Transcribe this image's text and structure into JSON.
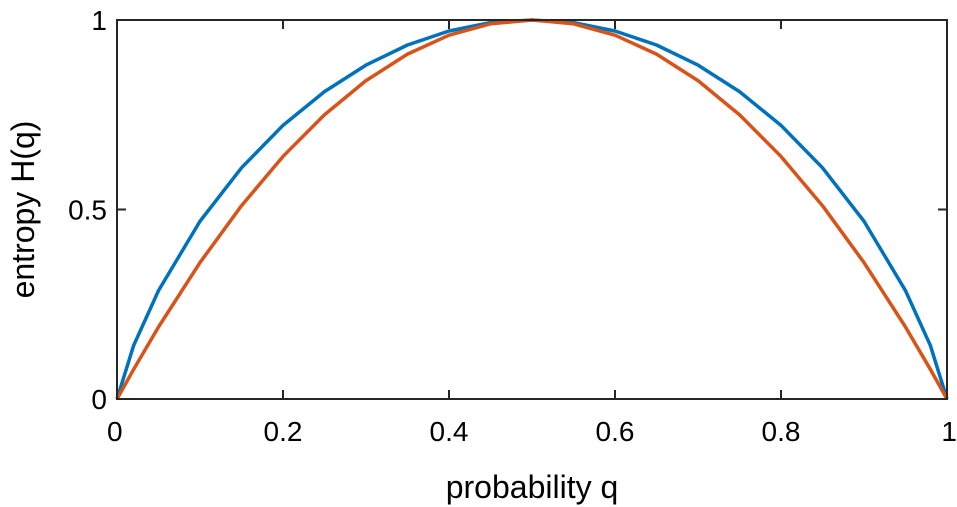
{
  "chart_data": {
    "type": "line",
    "xlabel": "probability q",
    "ylabel": "entropy H(q)",
    "xlim": [
      0,
      1
    ],
    "ylim": [
      0,
      1
    ],
    "x_ticks": [
      0,
      0.2,
      0.4,
      0.6,
      0.8,
      1
    ],
    "x_tick_labels": [
      "0",
      "0.2",
      "0.4",
      "0.6",
      "0.8",
      "1"
    ],
    "y_ticks": [
      0,
      0.5,
      1
    ],
    "y_tick_labels": [
      "0",
      "0.5",
      "1"
    ],
    "grid": false,
    "legend": false,
    "series": [
      {
        "color": "#0072BD",
        "x": [
          0,
          0.02,
          0.05,
          0.1,
          0.15,
          0.2,
          0.25,
          0.3,
          0.35,
          0.4,
          0.45,
          0.5,
          0.55,
          0.6,
          0.65,
          0.7,
          0.75,
          0.8,
          0.85,
          0.9,
          0.95,
          0.98,
          1
        ],
        "y": [
          0,
          0.141,
          0.286,
          0.469,
          0.61,
          0.722,
          0.811,
          0.881,
          0.934,
          0.971,
          0.993,
          1.0,
          0.993,
          0.971,
          0.934,
          0.881,
          0.811,
          0.722,
          0.61,
          0.469,
          0.286,
          0.141,
          0
        ]
      },
      {
        "color": "#D95319",
        "x": [
          0,
          0.02,
          0.05,
          0.1,
          0.15,
          0.2,
          0.25,
          0.3,
          0.35,
          0.4,
          0.45,
          0.5,
          0.55,
          0.6,
          0.65,
          0.7,
          0.75,
          0.8,
          0.85,
          0.9,
          0.95,
          0.98,
          1
        ],
        "y": [
          0,
          0.078,
          0.19,
          0.36,
          0.51,
          0.64,
          0.75,
          0.84,
          0.91,
          0.96,
          0.99,
          1.0,
          0.99,
          0.96,
          0.91,
          0.84,
          0.75,
          0.64,
          0.51,
          0.36,
          0.19,
          0.078,
          0
        ]
      }
    ]
  }
}
